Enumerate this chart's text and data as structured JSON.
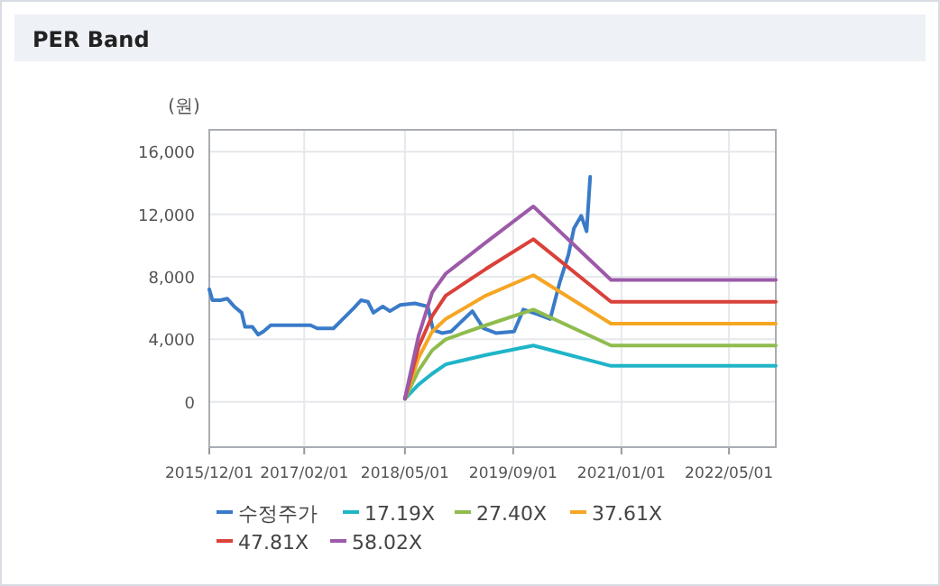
{
  "chart_data": {
    "type": "line",
    "title": "PER Band",
    "ylabel": "(원)",
    "xlim": [
      "2015-12-01",
      "2022-11-28"
    ],
    "ylim": [
      -2900,
      17400
    ],
    "xticks": [
      {
        "value": "2015-12-01",
        "label": "2015/12/01"
      },
      {
        "value": "2017-02-01",
        "label": "2017/02/01"
      },
      {
        "value": "2018-05-01",
        "label": "2018/05/01"
      },
      {
        "value": "2019-09-01",
        "label": "2019/09/01"
      },
      {
        "value": "2021-01-01",
        "label": "2021/01/01"
      },
      {
        "value": "2022-05-01",
        "label": "2022/05/01"
      }
    ],
    "yticks": [
      {
        "value": 0,
        "label": "0"
      },
      {
        "value": 4000,
        "label": "4,000"
      },
      {
        "value": 8000,
        "label": "8,000"
      },
      {
        "value": 12000,
        "label": "12,000"
      },
      {
        "value": 16000,
        "label": "16,000"
      }
    ],
    "grid": true,
    "legend": "bottom",
    "marker": "none",
    "line_style": "solid",
    "series": [
      {
        "name": "수정주가",
        "color": "#3a7bc8",
        "x": [
          "2015-12-01",
          "2015-12-15",
          "2016-01-20",
          "2016-02-20",
          "2016-03-22",
          "2016-04-25",
          "2016-05-10",
          "2016-06-12",
          "2016-07-08",
          "2016-08-01",
          "2016-09-03",
          "2017-03-01",
          "2017-04-01",
          "2017-06-13",
          "2017-07-25",
          "2017-09-13",
          "2017-10-15",
          "2017-11-15",
          "2017-12-10",
          "2018-01-21",
          "2018-02-22",
          "2018-04-10",
          "2018-06-15",
          "2018-08-12",
          "2018-09-05",
          "2018-10-15",
          "2018-11-25",
          "2019-03-01",
          "2019-04-20",
          "2019-06-15",
          "2019-09-05",
          "2019-10-17",
          "2019-12-20",
          "2020-02-15",
          "2020-03-28",
          "2020-05-07",
          "2020-06-01",
          "2020-07-04",
          "2020-07-28",
          "2020-08-13"
        ],
        "values": [
          7200,
          6500,
          6500,
          6600,
          6100,
          5700,
          4800,
          4800,
          4300,
          4500,
          4900,
          4900,
          4700,
          4700,
          5300,
          6000,
          6500,
          6400,
          5700,
          6100,
          5800,
          6200,
          6300,
          6100,
          4600,
          4400,
          4500,
          5800,
          4700,
          4400,
          4500,
          5900,
          5600,
          5300,
          7600,
          9400,
          11100,
          11900,
          10900,
          14400
        ]
      },
      {
        "name": "17.19X",
        "color": "#1fb5c8",
        "x": [
          "2018-05-01",
          "2018-07-01",
          "2018-09-01",
          "2018-11-01",
          "2019-05-01",
          "2019-12-01",
          "2020-11-15",
          "2022-11-28"
        ],
        "values": [
          200,
          1100,
          1800,
          2400,
          3000,
          3600,
          2300,
          2300
        ]
      },
      {
        "name": "27.40X",
        "color": "#8fbc4e",
        "x": [
          "2018-05-01",
          "2018-07-01",
          "2018-09-01",
          "2018-11-01",
          "2019-05-01",
          "2019-12-01",
          "2020-11-15",
          "2022-11-28"
        ],
        "values": [
          200,
          2000,
          3300,
          4000,
          4900,
          5900,
          3600,
          3600
        ]
      },
      {
        "name": "37.61X",
        "color": "#f5a623",
        "x": [
          "2018-05-01",
          "2018-07-01",
          "2018-09-01",
          "2018-11-01",
          "2019-05-01",
          "2019-12-01",
          "2020-11-15",
          "2022-11-28"
        ],
        "values": [
          200,
          2800,
          4500,
          5300,
          6800,
          8100,
          5000,
          5000
        ]
      },
      {
        "name": "47.81X",
        "color": "#d9413a",
        "x": [
          "2018-05-01",
          "2018-07-01",
          "2018-09-01",
          "2018-11-01",
          "2019-05-01",
          "2019-12-01",
          "2020-11-15",
          "2022-11-28"
        ],
        "values": [
          200,
          3500,
          5500,
          6800,
          8500,
          10400,
          6400,
          6400
        ]
      },
      {
        "name": "58.02X",
        "color": "#9c5aa8",
        "x": [
          "2018-05-01",
          "2018-07-01",
          "2018-09-01",
          "2018-11-01",
          "2019-05-01",
          "2019-12-01",
          "2020-11-15",
          "2022-11-28"
        ],
        "values": [
          200,
          4200,
          7000,
          8200,
          10200,
          12500,
          7800,
          7800
        ]
      }
    ]
  }
}
